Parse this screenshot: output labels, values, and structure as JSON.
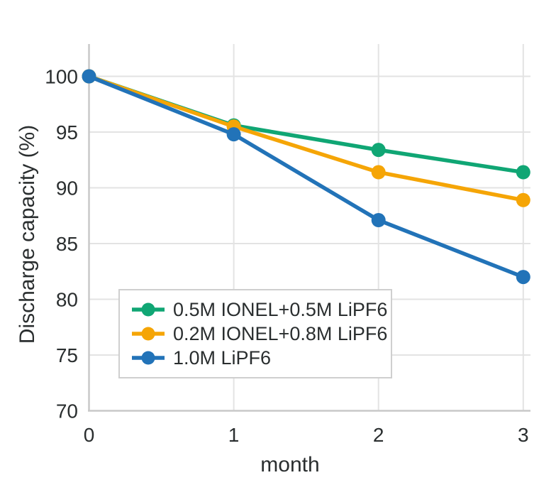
{
  "chart_data": {
    "type": "line",
    "title": "",
    "xlabel": "month",
    "ylabel": "Discharge capacity (%)",
    "x": [
      0,
      1,
      2,
      3
    ],
    "series": [
      {
        "name": "0.5M IONEL+0.5M LiPF6",
        "color": "#10a674",
        "values": [
          100,
          95.6,
          93.4,
          91.4
        ]
      },
      {
        "name": "0.2M IONEL+0.8M LiPF6",
        "color": "#f5a506",
        "values": [
          100,
          95.5,
          91.4,
          88.9
        ]
      },
      {
        "name": "1.0M LiPF6",
        "color": "#2273b8",
        "values": [
          100,
          94.8,
          87.1,
          82.0
        ]
      }
    ],
    "x_ticks": [
      0,
      1,
      2,
      3
    ],
    "y_ticks": [
      70,
      75,
      80,
      85,
      90,
      95,
      100
    ],
    "xlim": [
      0,
      3.05
    ],
    "ylim": [
      70,
      102.9
    ],
    "grid": true,
    "legend_position": "lower-left"
  },
  "colors": {
    "background": "#ffffff",
    "grid": "#e3e3e3",
    "spine": "#c9c9c9",
    "text": "#2a2e2f",
    "legend_border": "#cfcfcf"
  }
}
